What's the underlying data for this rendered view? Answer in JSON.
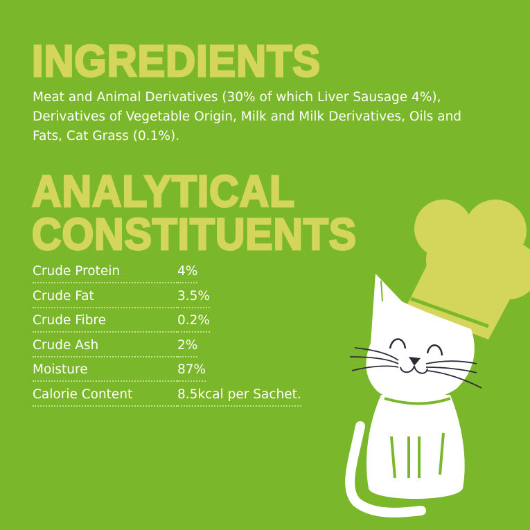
{
  "ingredients": {
    "heading": "INGREDIENTS",
    "text": "Meat and Animal Derivatives (30% of which Liver Sausage 4%), Derivatives of Vegetable Origin, Milk and Milk Derivatives, Oils and Fats, Cat Grass (0.1%)."
  },
  "analytical": {
    "heading_line1": "ANALYTICAL",
    "heading_line2": "CONSTITUENTS",
    "rows": [
      {
        "label": "Crude Protein",
        "value": "4%"
      },
      {
        "label": "Crude Fat",
        "value": "3.5%"
      },
      {
        "label": "Crude Fibre",
        "value": "0.2%"
      },
      {
        "label": "Crude Ash",
        "value": "2%"
      },
      {
        "label": "Moisture",
        "value": "87%"
      },
      {
        "label": "Calorie Content",
        "value": "8.5kcal per Sachet."
      }
    ]
  },
  "colors": {
    "background": "#7ab72a",
    "heading": "#d3d65a",
    "text": "#ffffff"
  },
  "illustration": "cat-chef-illustration"
}
